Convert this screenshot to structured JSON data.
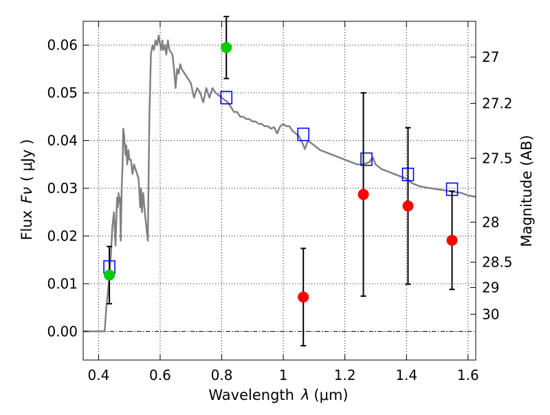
{
  "chart_data": {
    "type": "scatter",
    "xlabel": "Wavelength",
    "xlabel_symbol": "λ",
    "xlabel_unit": "(μm)",
    "ylabel": "Flux",
    "ylabel_symbol": "Fν",
    "ylabel_unit": "( μJy )",
    "y2label": "Magnitude (AB)",
    "xlim": [
      0.35,
      1.625
    ],
    "ylim": [
      -0.006,
      0.065
    ],
    "grid": true,
    "x_ticks": [
      0.4,
      0.6,
      0.8,
      1.0,
      1.2,
      1.4,
      1.6
    ],
    "x_tick_labels": [
      "0.4",
      "0.6",
      "0.8",
      "1",
      "1.2",
      "1.4",
      "1.6"
    ],
    "y_ticks": [
      0.0,
      0.01,
      0.02,
      0.03,
      0.04,
      0.05,
      0.06
    ],
    "y_tick_labels": [
      "0.00",
      "0.01",
      "0.02",
      "0.03",
      "0.04",
      "0.05",
      "0.06"
    ],
    "mag_ticks": [
      {
        "label": "27",
        "flux": 0.0575
      },
      {
        "label": "27.2",
        "flux": 0.0478
      },
      {
        "label": "27.5",
        "flux": 0.0363
      },
      {
        "label": "28",
        "flux": 0.0229
      },
      {
        "label": "28.5",
        "flux": 0.0145
      },
      {
        "label": "29",
        "flux": 0.0092
      },
      {
        "label": "30",
        "flux": 0.0036
      }
    ],
    "series": [
      {
        "kind": "line",
        "color": "#808080",
        "points": [
          [
            0.35,
            0.0
          ],
          [
            0.41,
            0.0
          ],
          [
            0.42,
            0.0
          ],
          [
            0.425,
            0.005
          ],
          [
            0.43,
            0.008
          ],
          [
            0.435,
            0.012
          ],
          [
            0.44,
            0.016
          ],
          [
            0.445,
            0.022
          ],
          [
            0.45,
            0.025
          ],
          [
            0.455,
            0.018
          ],
          [
            0.46,
            0.028
          ],
          [
            0.462,
            0.026
          ],
          [
            0.465,
            0.029
          ],
          [
            0.468,
            0.027
          ],
          [
            0.47,
            0.028
          ],
          [
            0.472,
            0.019
          ],
          [
            0.475,
            0.03
          ],
          [
            0.478,
            0.035
          ],
          [
            0.48,
            0.0425
          ],
          [
            0.483,
            0.041
          ],
          [
            0.487,
            0.037
          ],
          [
            0.49,
            0.039
          ],
          [
            0.493,
            0.035
          ],
          [
            0.497,
            0.038
          ],
          [
            0.5,
            0.036
          ],
          [
            0.505,
            0.036
          ],
          [
            0.51,
            0.033
          ],
          [
            0.515,
            0.035
          ],
          [
            0.52,
            0.034
          ],
          [
            0.525,
            0.033
          ],
          [
            0.53,
            0.032
          ],
          [
            0.535,
            0.026
          ],
          [
            0.538,
            0.03
          ],
          [
            0.541,
            0.025
          ],
          [
            0.545,
            0.029
          ],
          [
            0.55,
            0.025
          ],
          [
            0.555,
            0.022
          ],
          [
            0.56,
            0.019
          ],
          [
            0.565,
            0.045
          ],
          [
            0.57,
            0.058
          ],
          [
            0.575,
            0.06
          ],
          [
            0.58,
            0.059
          ],
          [
            0.585,
            0.061
          ],
          [
            0.59,
            0.06
          ],
          [
            0.595,
            0.062
          ],
          [
            0.6,
            0.06
          ],
          [
            0.603,
            0.059
          ],
          [
            0.607,
            0.061
          ],
          [
            0.61,
            0.059
          ],
          [
            0.615,
            0.06
          ],
          [
            0.62,
            0.058
          ],
          [
            0.625,
            0.061
          ],
          [
            0.63,
            0.059
          ],
          [
            0.64,
            0.058
          ],
          [
            0.645,
            0.055
          ],
          [
            0.65,
            0.051
          ],
          [
            0.655,
            0.055
          ],
          [
            0.66,
            0.054
          ],
          [
            0.665,
            0.056
          ],
          [
            0.67,
            0.055
          ],
          [
            0.68,
            0.054
          ],
          [
            0.69,
            0.053
          ],
          [
            0.7,
            0.052
          ],
          [
            0.71,
            0.049
          ],
          [
            0.72,
            0.051
          ],
          [
            0.73,
            0.05
          ],
          [
            0.74,
            0.048
          ],
          [
            0.75,
            0.051
          ],
          [
            0.76,
            0.049
          ],
          [
            0.77,
            0.051
          ],
          [
            0.78,
            0.05
          ],
          [
            0.79,
            0.0495
          ],
          [
            0.8,
            0.049
          ],
          [
            0.81,
            0.0485
          ],
          [
            0.82,
            0.048
          ],
          [
            0.83,
            0.047
          ],
          [
            0.84,
            0.046
          ],
          [
            0.85,
            0.046
          ],
          [
            0.86,
            0.045
          ],
          [
            0.87,
            0.045
          ],
          [
            0.88,
            0.0445
          ],
          [
            0.89,
            0.0445
          ],
          [
            0.9,
            0.044
          ],
          [
            0.91,
            0.044
          ],
          [
            0.92,
            0.0435
          ],
          [
            0.93,
            0.0435
          ],
          [
            0.94,
            0.043
          ],
          [
            0.95,
            0.043
          ],
          [
            0.96,
            0.0425
          ],
          [
            0.97,
            0.0428
          ],
          [
            0.98,
            0.0415
          ],
          [
            0.99,
            0.043
          ],
          [
            1.0,
            0.0435
          ],
          [
            1.01,
            0.043
          ],
          [
            1.02,
            0.043
          ],
          [
            1.03,
            0.042
          ],
          [
            1.04,
            0.0415
          ],
          [
            1.05,
            0.041
          ],
          [
            1.06,
            0.0398
          ],
          [
            1.07,
            0.0382
          ],
          [
            1.08,
            0.04
          ],
          [
            1.09,
            0.0395
          ],
          [
            1.1,
            0.039
          ],
          [
            1.12,
            0.038
          ],
          [
            1.14,
            0.0375
          ],
          [
            1.16,
            0.037
          ],
          [
            1.18,
            0.0365
          ],
          [
            1.2,
            0.036
          ],
          [
            1.22,
            0.0355
          ],
          [
            1.24,
            0.035
          ],
          [
            1.26,
            0.035
          ],
          [
            1.28,
            0.0355
          ],
          [
            1.29,
            0.0365
          ],
          [
            1.3,
            0.035
          ],
          [
            1.32,
            0.034
          ],
          [
            1.34,
            0.0335
          ],
          [
            1.36,
            0.033
          ],
          [
            1.38,
            0.0325
          ],
          [
            1.4,
            0.032
          ],
          [
            1.42,
            0.031
          ],
          [
            1.44,
            0.0305
          ],
          [
            1.46,
            0.0302
          ],
          [
            1.48,
            0.03
          ],
          [
            1.5,
            0.0298
          ],
          [
            1.52,
            0.0296
          ],
          [
            1.54,
            0.0294
          ],
          [
            1.56,
            0.0292
          ],
          [
            1.58,
            0.029
          ],
          [
            1.6,
            0.0285
          ],
          [
            1.625,
            0.0282
          ]
        ]
      },
      {
        "kind": "open-square",
        "color": "#0000ff",
        "points": [
          [
            0.435,
            0.0135
          ],
          [
            0.815,
            0.049
          ],
          [
            1.065,
            0.0413
          ],
          [
            1.27,
            0.0361
          ],
          [
            1.405,
            0.0329
          ],
          [
            1.548,
            0.0298
          ]
        ]
      },
      {
        "kind": "point",
        "color": "#00cc00",
        "points": [
          [
            0.435,
            0.0118,
            0.006
          ],
          [
            0.815,
            0.0595,
            0.0065
          ]
        ]
      },
      {
        "kind": "point",
        "color": "#ff0000",
        "points": [
          [
            1.065,
            0.0072,
            0.0102
          ],
          [
            1.26,
            0.0287,
            0.0213
          ],
          [
            1.405,
            0.0263,
            0.0164
          ],
          [
            1.548,
            0.0191,
            0.0103
          ]
        ]
      }
    ]
  }
}
